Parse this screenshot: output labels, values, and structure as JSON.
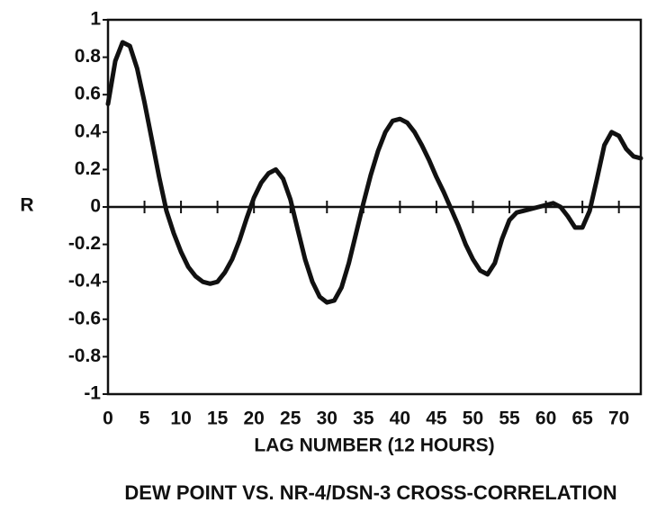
{
  "chart_data": {
    "type": "line",
    "title": "DEW POINT VS. NR-4/DSN-3 CROSS-CORRELATION",
    "xlabel": "LAG NUMBER (12 HOURS)",
    "ylabel": "R",
    "x": [
      0,
      1,
      2,
      3,
      4,
      5,
      6,
      7,
      8,
      9,
      10,
      11,
      12,
      13,
      14,
      15,
      16,
      17,
      18,
      19,
      20,
      21,
      22,
      23,
      24,
      25,
      26,
      27,
      28,
      29,
      30,
      31,
      32,
      33,
      34,
      35,
      36,
      37,
      38,
      39,
      40,
      41,
      42,
      43,
      44,
      45,
      46,
      47,
      48,
      49,
      50,
      51,
      52,
      53,
      54,
      55,
      56,
      57,
      58,
      59,
      60,
      61,
      62,
      63,
      64,
      65,
      66,
      67,
      68,
      69,
      70,
      71,
      72,
      73
    ],
    "series": [
      {
        "color": "#111111",
        "values": [
          0.55,
          0.78,
          0.88,
          0.86,
          0.74,
          0.56,
          0.36,
          0.16,
          -0.02,
          -0.14,
          -0.24,
          -0.32,
          -0.37,
          -0.4,
          -0.41,
          -0.4,
          -0.35,
          -0.28,
          -0.18,
          -0.06,
          0.05,
          0.13,
          0.18,
          0.2,
          0.15,
          0.04,
          -0.12,
          -0.28,
          -0.4,
          -0.48,
          -0.51,
          -0.5,
          -0.43,
          -0.3,
          -0.14,
          0.02,
          0.17,
          0.3,
          0.4,
          0.46,
          0.47,
          0.45,
          0.4,
          0.33,
          0.25,
          0.16,
          0.08,
          -0.01,
          -0.1,
          -0.2,
          -0.28,
          -0.34,
          -0.36,
          -0.3,
          -0.17,
          -0.07,
          -0.03,
          -0.02,
          -0.01,
          0,
          0.01,
          0.02,
          0,
          -0.05,
          -0.11,
          -0.11,
          -0.02,
          0.15,
          0.33,
          0.4,
          0.38,
          0.31,
          0.27,
          0.26
        ]
      }
    ],
    "xlim": [
      0,
      73
    ],
    "xticks": [
      0,
      5,
      10,
      15,
      20,
      25,
      30,
      35,
      40,
      45,
      50,
      55,
      60,
      65,
      70
    ],
    "ylim": [
      -1,
      1
    ],
    "yticks": [
      -1,
      -0.8,
      -0.6,
      -0.4,
      -0.2,
      0,
      0.2,
      0.4,
      0.6,
      0.8,
      1
    ]
  }
}
